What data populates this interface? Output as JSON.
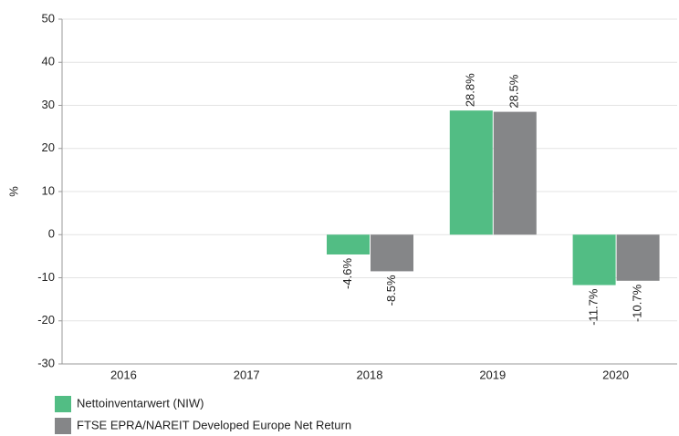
{
  "chart_data": {
    "type": "bar",
    "categories": [
      "2016",
      "2017",
      "2018",
      "2019",
      "2020"
    ],
    "y_label": "%",
    "series": [
      {
        "name": "Nettoinventarwert (NIW)",
        "color": "#52bd84",
        "values": [
          null,
          null,
          -4.6,
          28.8,
          -11.7
        ],
        "value_labels": [
          null,
          null,
          "-4.6%",
          "28.8%",
          "-11.7%"
        ]
      },
      {
        "name": "FTSE EPRA/NAREIT Developed Europe Net Return",
        "color": "#858688",
        "values": [
          null,
          null,
          -8.5,
          28.5,
          -10.7
        ],
        "value_labels": [
          null,
          null,
          "-8.5%",
          "28.5%",
          "-10.7%"
        ]
      }
    ],
    "ylim": [
      -30,
      50
    ],
    "yticks": [
      -30,
      -20,
      -10,
      0,
      10,
      20,
      30,
      40,
      50
    ],
    "grid": true,
    "legend": "bottom-left"
  }
}
